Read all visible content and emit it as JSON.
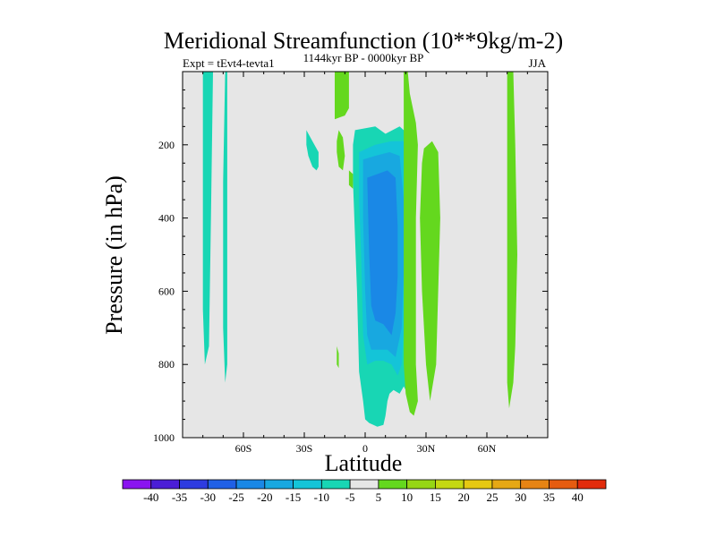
{
  "chart_data": {
    "type": "heatmap",
    "title": "Meridional Streamfunction (10**9kg/m-2)",
    "subtitle": "1144kyr BP - 0000kyr BP",
    "left_label": "Expt = tEvt4-tevta1",
    "right_label": "JJA",
    "xlabel": "Latitude",
    "ylabel": "Pressure (in hPa)",
    "xlim": [
      -90,
      90
    ],
    "ylim": [
      1000,
      0
    ],
    "x_ticks": [
      {
        "value": -60,
        "label": "60S"
      },
      {
        "value": -30,
        "label": "30S"
      },
      {
        "value": 0,
        "label": "0"
      },
      {
        "value": 30,
        "label": "30N"
      },
      {
        "value": 60,
        "label": "60N"
      }
    ],
    "y_ticks": [
      {
        "value": 200,
        "label": "200"
      },
      {
        "value": 400,
        "label": "400"
      },
      {
        "value": 600,
        "label": "600"
      },
      {
        "value": 800,
        "label": "800"
      },
      {
        "value": 1000,
        "label": "1000"
      }
    ],
    "background_color": "#e6e6e6",
    "colorbar": {
      "levels": [
        "-40",
        "-35",
        "-30",
        "-25",
        "-20",
        "-15",
        "-10",
        "-5",
        "5",
        "10",
        "15",
        "20",
        "25",
        "30",
        "35",
        "40"
      ],
      "colors": [
        "#8a14f0",
        "#4b1ed6",
        "#2e3ce0",
        "#2060e6",
        "#1a88e6",
        "#18a8e0",
        "#14c4d8",
        "#18d6b4",
        "#e6e6e6",
        "#64d81e",
        "#96d614",
        "#c4d812",
        "#e6c812",
        "#e6a814",
        "#e68414",
        "#e65c10",
        "#e22c0c"
      ]
    },
    "regions": [
      {
        "name": "negative contour band (-5 to -10)",
        "level": "-5",
        "color": "#18d6b4",
        "points": [
          [
            -80,
            0
          ],
          [
            -75,
            0
          ],
          [
            -76,
            400
          ],
          [
            -77,
            750
          ],
          [
            -79,
            800
          ],
          [
            -80,
            650
          ],
          [
            -80,
            300
          ]
        ]
      },
      {
        "name": "negative contour band (-5 to -10)",
        "level": "-5",
        "color": "#18d6b4",
        "points": [
          [
            -69,
            0
          ],
          [
            -68,
            0
          ],
          [
            -68,
            400
          ],
          [
            -68,
            800
          ],
          [
            -69,
            850
          ],
          [
            -70,
            700
          ],
          [
            -70,
            300
          ]
        ]
      },
      {
        "name": "negative contour band (-5 to -10)",
        "level": "-5",
        "color": "#18d6b4",
        "points": [
          [
            -29,
            160
          ],
          [
            -26,
            190
          ],
          [
            -23,
            220
          ],
          [
            -23,
            260
          ],
          [
            -24,
            270
          ],
          [
            -26,
            260
          ],
          [
            -28,
            230
          ],
          [
            -29,
            200
          ]
        ]
      },
      {
        "name": "negative contour band (-5 to -10)",
        "level": "-5",
        "color": "#18d6b4",
        "points": [
          [
            -5,
            160
          ],
          [
            5,
            150
          ],
          [
            10,
            170
          ],
          [
            17,
            150
          ],
          [
            23,
            180
          ],
          [
            24,
            300
          ],
          [
            23,
            500
          ],
          [
            23,
            700
          ],
          [
            23,
            850
          ],
          [
            21,
            880
          ],
          [
            19,
            860
          ],
          [
            17,
            880
          ],
          [
            14,
            870
          ],
          [
            12,
            880
          ],
          [
            11,
            900
          ],
          [
            10,
            940
          ],
          [
            9,
            965
          ],
          [
            6,
            970
          ],
          [
            2,
            960
          ],
          [
            0,
            950
          ],
          [
            -1,
            900
          ],
          [
            -3,
            820
          ],
          [
            -4,
            600
          ],
          [
            -6,
            300
          ],
          [
            -6,
            200
          ]
        ]
      },
      {
        "name": "negative contour band (-10 to -15)",
        "level": "-10",
        "color": "#14c4d8",
        "points": [
          [
            -3,
            220
          ],
          [
            5,
            200
          ],
          [
            13,
            190
          ],
          [
            19,
            190
          ],
          [
            21,
            300
          ],
          [
            20,
            500
          ],
          [
            19,
            700
          ],
          [
            18,
            800
          ],
          [
            16,
            830
          ],
          [
            13,
            800
          ],
          [
            9,
            790
          ],
          [
            5,
            790
          ],
          [
            1,
            800
          ],
          [
            -1,
            720
          ],
          [
            -2,
            500
          ],
          [
            -3,
            350
          ]
        ]
      },
      {
        "name": "negative contour band (-15 to -20)",
        "level": "-15",
        "color": "#18a8e0",
        "points": [
          [
            -1,
            240
          ],
          [
            5,
            230
          ],
          [
            12,
            220
          ],
          [
            17,
            230
          ],
          [
            19,
            350
          ],
          [
            19,
            550
          ],
          [
            18,
            700
          ],
          [
            15,
            780
          ],
          [
            11,
            760
          ],
          [
            7,
            760
          ],
          [
            3,
            760
          ],
          [
            1,
            720
          ],
          [
            0,
            600
          ],
          [
            -1,
            400
          ]
        ]
      },
      {
        "name": "negative contour band (-20 to -25)",
        "level": "-20",
        "color": "#1a88e6",
        "points": [
          [
            1,
            290
          ],
          [
            6,
            280
          ],
          [
            11,
            270
          ],
          [
            15,
            290
          ],
          [
            16,
            420
          ],
          [
            16,
            560
          ],
          [
            15,
            660
          ],
          [
            13,
            720
          ],
          [
            9,
            690
          ],
          [
            5,
            680
          ],
          [
            3,
            640
          ],
          [
            2,
            500
          ]
        ]
      },
      {
        "name": "positive contour band (5 to 10)",
        "level": "5",
        "color": "#64d81e",
        "points": [
          [
            -15,
            0
          ],
          [
            -8,
            0
          ],
          [
            -8,
            100
          ],
          [
            -10,
            120
          ],
          [
            -15,
            130
          ]
        ]
      },
      {
        "name": "positive contour band (5 to 10)",
        "level": "5",
        "color": "#64d81e",
        "points": [
          [
            -13,
            160
          ],
          [
            -11,
            180
          ],
          [
            -10,
            230
          ],
          [
            -11,
            270
          ],
          [
            -13,
            260
          ],
          [
            -14,
            220
          ],
          [
            -14,
            190
          ]
        ]
      },
      {
        "name": "positive contour band (5 to 10)",
        "level": "5",
        "color": "#64d81e",
        "points": [
          [
            -8,
            270
          ],
          [
            -6,
            280
          ],
          [
            -6,
            320
          ],
          [
            -8,
            310
          ]
        ]
      },
      {
        "name": "positive contour band (5 to 10)",
        "level": "5",
        "color": "#64d81e",
        "points": [
          [
            19,
            0
          ],
          [
            21,
            0
          ],
          [
            22,
            60
          ],
          [
            25,
            140
          ],
          [
            26,
            200
          ],
          [
            25,
            400
          ],
          [
            25,
            600
          ],
          [
            25,
            800
          ],
          [
            26,
            900
          ],
          [
            24,
            940
          ],
          [
            22,
            930
          ],
          [
            20,
            880
          ],
          [
            19,
            800
          ],
          [
            19,
            200
          ]
        ]
      },
      {
        "name": "positive contour band (5 to 10)",
        "level": "5",
        "color": "#64d81e",
        "points": [
          [
            29,
            210
          ],
          [
            33,
            190
          ],
          [
            36,
            220
          ],
          [
            37,
            400
          ],
          [
            36,
            600
          ],
          [
            35,
            800
          ],
          [
            32,
            900
          ],
          [
            30,
            800
          ],
          [
            28,
            600
          ],
          [
            27,
            400
          ],
          [
            28,
            250
          ]
        ]
      },
      {
        "name": "positive contour band (5 to 10)",
        "level": "5",
        "color": "#64d81e",
        "points": [
          [
            -14,
            750
          ],
          [
            -13,
            770
          ],
          [
            -13,
            810
          ],
          [
            -14,
            800
          ]
        ]
      },
      {
        "name": "positive contour band (5 to 10)",
        "level": "5",
        "color": "#64d81e",
        "points": [
          [
            70,
            0
          ],
          [
            73,
            0
          ],
          [
            74,
            200
          ],
          [
            75,
            500
          ],
          [
            74,
            750
          ],
          [
            73,
            850
          ],
          [
            71,
            920
          ],
          [
            70,
            850
          ],
          [
            70,
            500
          ]
        ]
      }
    ]
  }
}
